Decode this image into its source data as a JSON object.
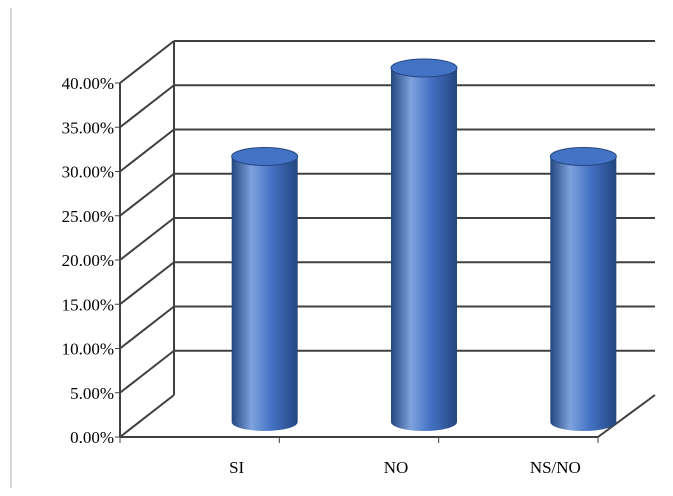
{
  "chart_data": {
    "type": "bar",
    "style": "3d-cylinder",
    "categories": [
      "SI",
      "NO",
      "NS/NO"
    ],
    "values": [
      30.0,
      40.0,
      30.0
    ],
    "ylim": [
      0,
      40
    ],
    "yticks": [
      "0.00%",
      "5.00%",
      "10.00%",
      "15.00%",
      "20.00%",
      "25.00%",
      "30.00%",
      "35.00%",
      "40.00%"
    ],
    "title": "",
    "xlabel": "",
    "ylabel": "",
    "grid": true,
    "legend": "none",
    "colors": {
      "bar": "#4472c4",
      "bar_dark": "#23467f",
      "bar_light": "#7ea2dd",
      "grid": "#404040",
      "border": "#b0b0b0"
    }
  }
}
